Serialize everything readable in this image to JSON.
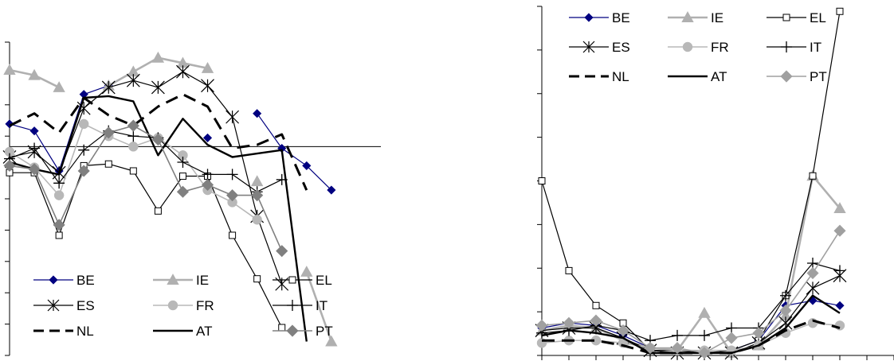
{
  "chart_data": [
    {
      "type": "line",
      "title": "",
      "xlabel": "",
      "ylabel": "",
      "x": [
        1,
        2,
        3,
        4,
        5,
        6,
        7,
        8,
        9,
        10,
        11,
        12,
        13,
        14,
        15,
        16
      ],
      "ylim": [
        -6,
        3
      ],
      "grid": false,
      "legend_placement": "bottom-center",
      "series": [
        {
          "name": "BE",
          "color": "#000080",
          "marker": "diamond",
          "values": [
            0.65,
            0.45,
            -0.7,
            1.5,
            1.75,
            null,
            null,
            null,
            0.25,
            null,
            0.95,
            -0.05,
            -0.55,
            -1.25,
            null,
            null
          ]
        },
        {
          "name": "IE",
          "color": "#b0b0b0",
          "marker": "triangle",
          "values": [
            2.2,
            2.05,
            1.7,
            null,
            1.75,
            2.15,
            2.55,
            2.4,
            2.25,
            null,
            -1,
            null,
            -3.6,
            -5.6,
            null,
            null
          ]
        },
        {
          "name": "EL",
          "color": "#000000",
          "marker": "square-open",
          "values": [
            -0.75,
            -0.75,
            -2.55,
            -0.55,
            -0.5,
            -0.7,
            -1.85,
            -0.85,
            -0.85,
            -2.55,
            -3.8,
            -5.2,
            null,
            null,
            null,
            null
          ]
        },
        {
          "name": "ES",
          "color": "#000000",
          "marker": "asterisk",
          "values": [
            -0.3,
            -0.15,
            -0.75,
            1.1,
            1.7,
            1.9,
            1.7,
            2.15,
            1.75,
            0.85,
            -2,
            -3.95,
            null,
            null,
            null,
            null
          ]
        },
        {
          "name": "FR",
          "color": "#b8b8b8",
          "marker": "circle",
          "values": [
            -0.15,
            -0.6,
            -1.4,
            0.65,
            0.3,
            0,
            0.25,
            -0.25,
            -1.25,
            -1.6,
            -2.1,
            null,
            null,
            null,
            null,
            null
          ]
        },
        {
          "name": "IT",
          "color": "#000000",
          "marker": "plus",
          "values": [
            -0.35,
            -0.05,
            -1.05,
            -0.1,
            0.45,
            0.3,
            0.25,
            -0.45,
            -0.8,
            -0.8,
            -1.3,
            -0.95,
            null,
            null,
            null,
            null
          ]
        },
        {
          "name": "NL",
          "color": "#000000",
          "marker": "none",
          "values": [
            0.6,
            0.95,
            0.4,
            1.4,
            0.9,
            0.6,
            1.15,
            1.5,
            1.15,
            -0.05,
            0.05,
            0.35,
            -1.25,
            null,
            null,
            null
          ]
        },
        {
          "name": "AT",
          "color": "#000000",
          "marker": "none",
          "values": [
            -0.45,
            -0.65,
            -0.8,
            1.4,
            1.45,
            1.3,
            -0.25,
            0.8,
            0.05,
            -0.3,
            -0.2,
            -0.1,
            -5.6,
            null,
            null,
            null
          ]
        },
        {
          "name": "PT",
          "color": "#808080",
          "marker": "diamond",
          "values": [
            -0.55,
            -0.65,
            -2.25,
            -0.7,
            0.4,
            0.6,
            0.2,
            -1.3,
            -1.1,
            -1.4,
            -1.4,
            -3,
            null,
            null,
            null,
            null
          ]
        }
      ]
    },
    {
      "type": "line",
      "title": "",
      "xlabel": "",
      "ylabel": "",
      "x": [
        1,
        2,
        3,
        4,
        5,
        6,
        7,
        8,
        9,
        10,
        11,
        12,
        13,
        14
      ],
      "ylim": [
        0,
        7
      ],
      "grid": false,
      "legend_placement": "top-left",
      "series": [
        {
          "name": "BE",
          "color": "#000080",
          "marker": "diamond",
          "values": [
            0.55,
            0.65,
            0.6,
            0.4,
            0.15,
            0.1,
            0.1,
            0.1,
            0.3,
            1.0,
            1.1,
            1.0,
            null,
            null
          ]
        },
        {
          "name": "IE",
          "color": "#b0b0b0",
          "marker": "triangle",
          "values": [
            0.5,
            0.6,
            0.55,
            0.3,
            0.15,
            0.1,
            0.85,
            0.05,
            0.2,
            0.8,
            3.6,
            2.95,
            null,
            null
          ]
        },
        {
          "name": "EL",
          "color": "#000000",
          "marker": "square-open",
          "values": [
            3.5,
            1.7,
            1.0,
            0.65,
            0.1,
            0.1,
            0.05,
            0.1,
            0.3,
            1.2,
            3.6,
            6.9,
            null,
            null
          ]
        },
        {
          "name": "ES",
          "color": "#000000",
          "marker": "asterisk",
          "values": [
            0.5,
            0.55,
            0.55,
            0.35,
            0.1,
            0.05,
            0.05,
            0.05,
            0.25,
            0.65,
            1.35,
            1.6,
            null,
            null
          ]
        },
        {
          "name": "FR",
          "color": "#b8b8b8",
          "marker": "circle",
          "values": [
            0.25,
            0.3,
            0.3,
            0.25,
            0.15,
            0.1,
            0.1,
            0.1,
            0.2,
            0.45,
            0.65,
            0.6,
            null,
            null
          ]
        },
        {
          "name": "IT",
          "color": "#000000",
          "marker": "plus",
          "values": [
            0.45,
            0.5,
            0.6,
            0.5,
            0.3,
            0.4,
            0.4,
            0.55,
            0.55,
            1.2,
            1.85,
            1.7,
            null,
            null
          ]
        },
        {
          "name": "NL",
          "color": "#000000",
          "marker": "none",
          "values": [
            0.3,
            0.3,
            0.3,
            0.2,
            0.05,
            0.05,
            0.05,
            0.05,
            0.2,
            0.5,
            0.7,
            0.55,
            null,
            null
          ]
        },
        {
          "name": "AT",
          "color": "#000000",
          "marker": "none",
          "values": [
            0.4,
            0.5,
            0.45,
            0.35,
            0.05,
            0.05,
            0.05,
            0.05,
            0.2,
            0.55,
            1.2,
            0.85,
            null,
            null
          ]
        },
        {
          "name": "PT",
          "color": "#a0a0a0",
          "marker": "diamond",
          "values": [
            0.6,
            0.65,
            0.7,
            0.5,
            0.15,
            0.15,
            0.05,
            0.35,
            0.45,
            0.9,
            1.65,
            2.5,
            null,
            null
          ]
        }
      ]
    }
  ]
}
